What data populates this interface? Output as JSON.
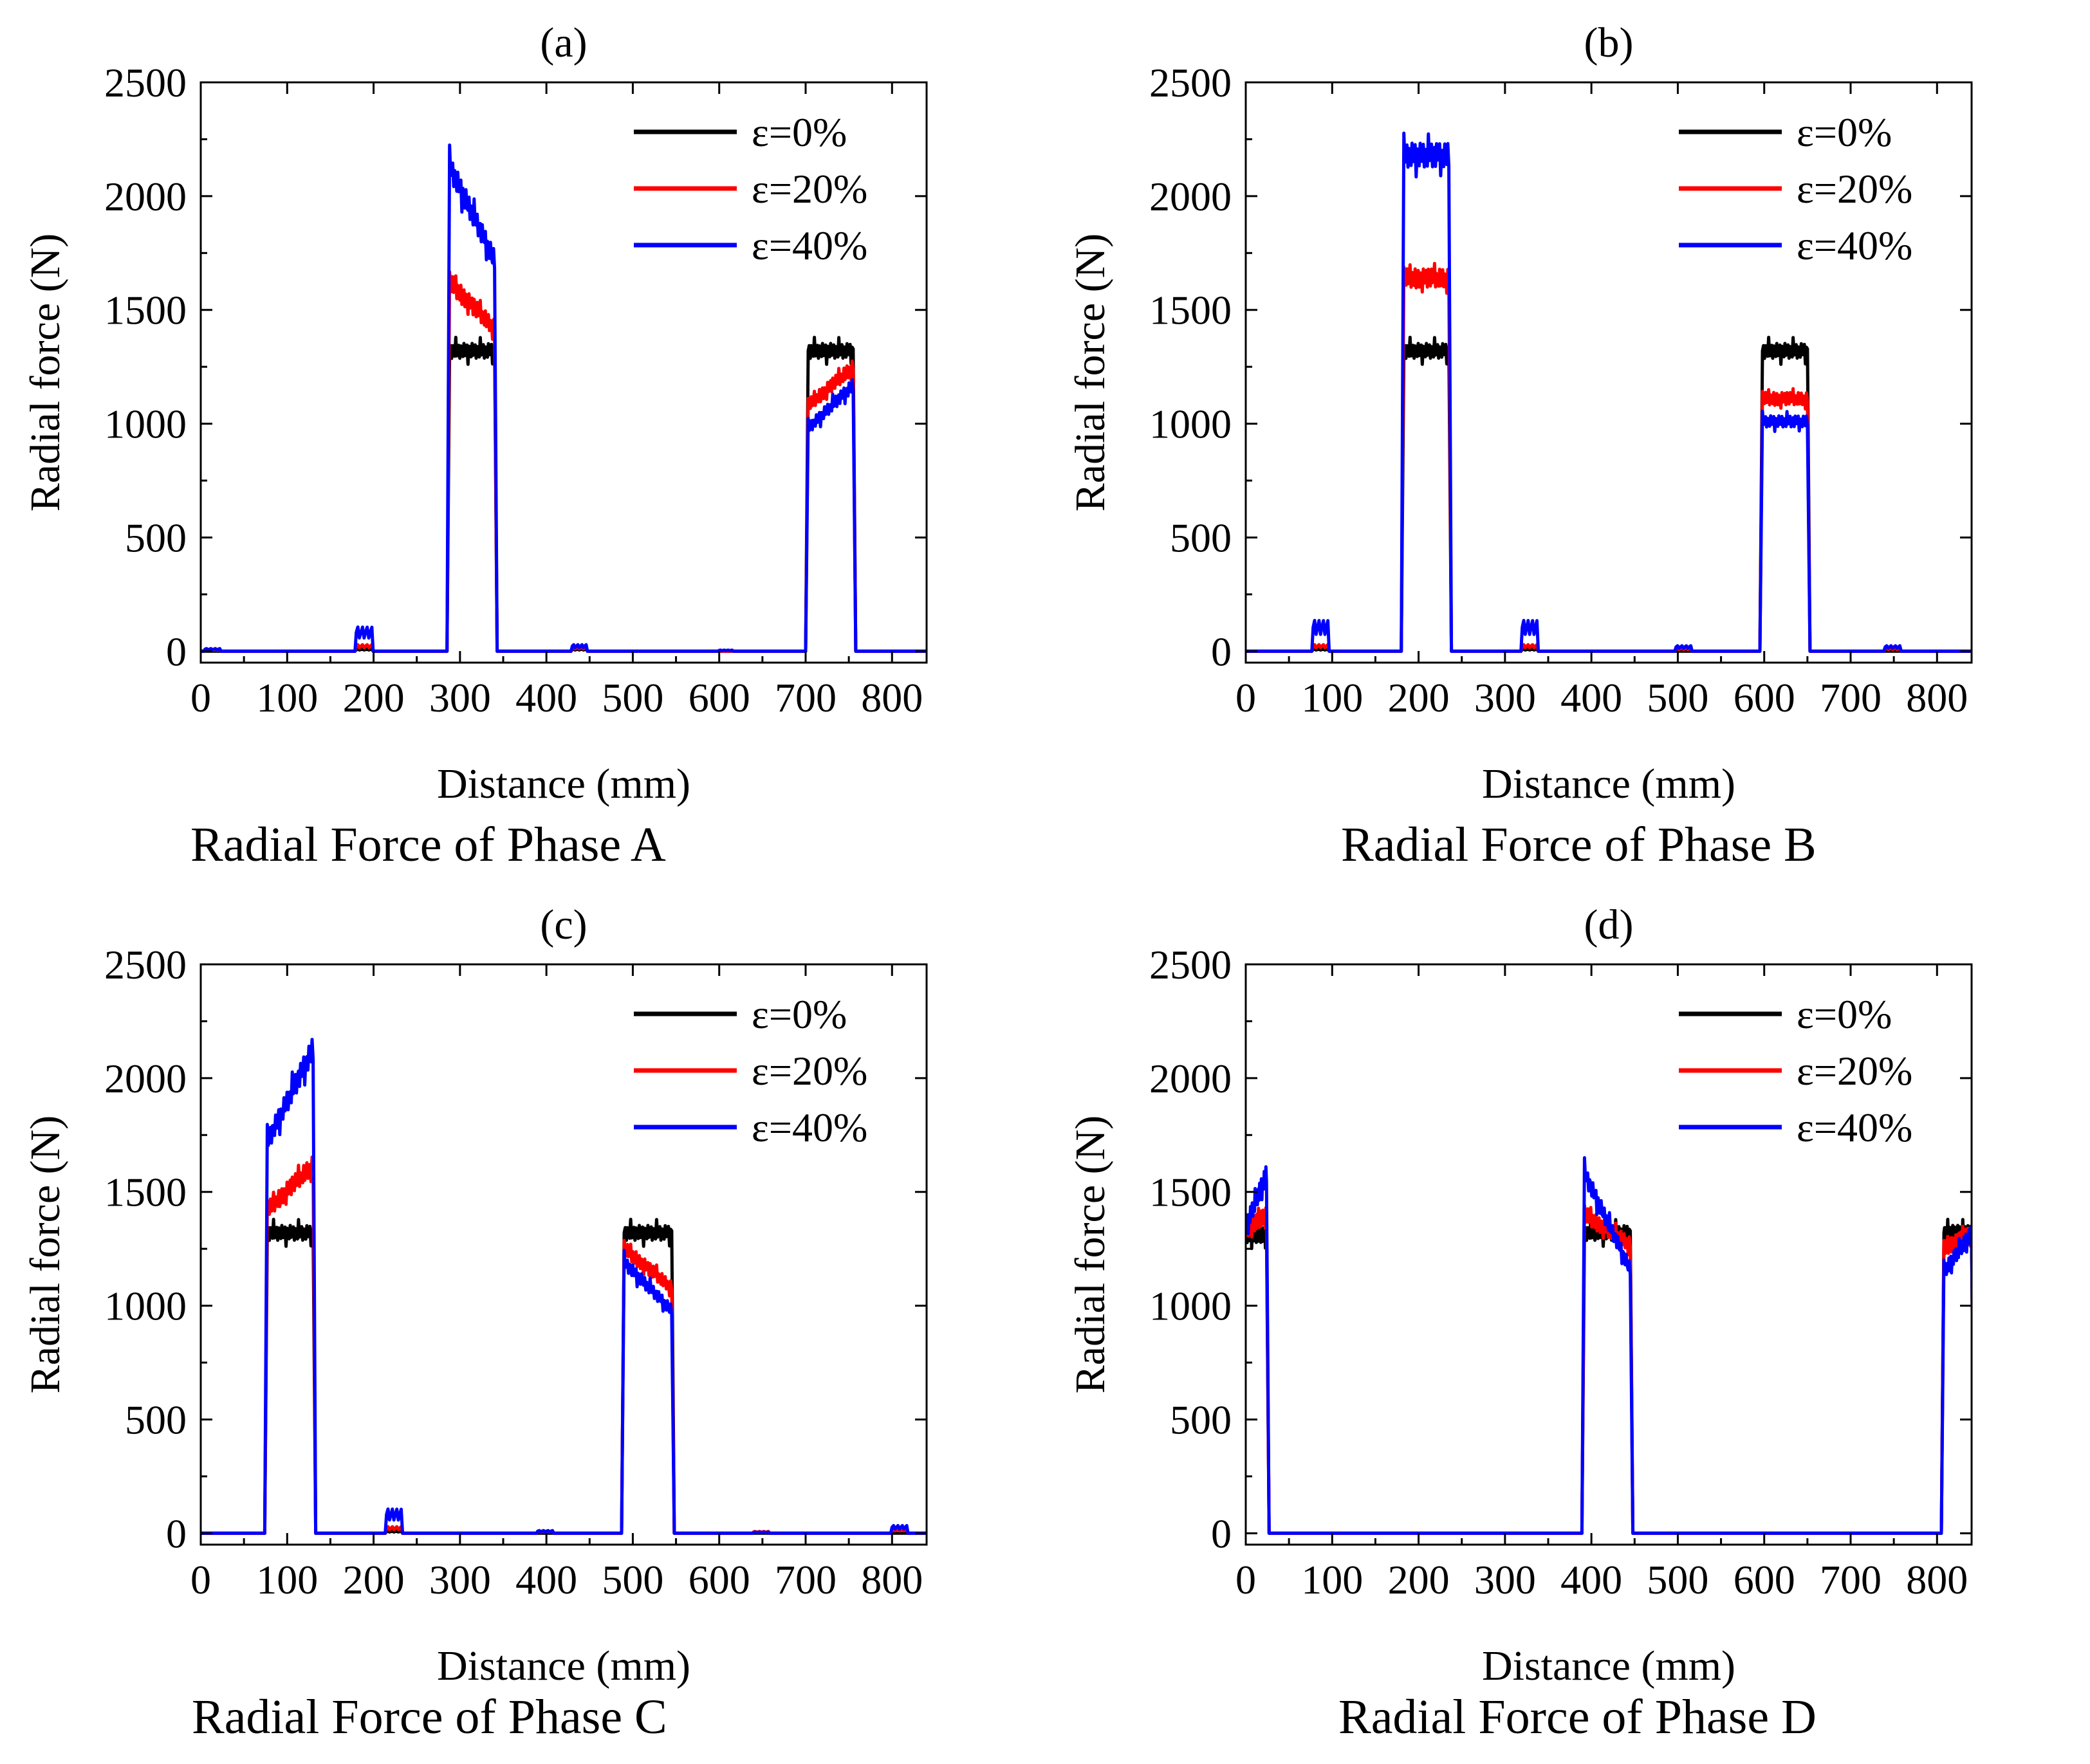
{
  "series_styles": [
    {
      "name": "ε=0%",
      "color": "#000000"
    },
    {
      "name": "ε=20%",
      "color": "#ff0000"
    },
    {
      "name": "ε=40%",
      "color": "#0000ff"
    }
  ],
  "chart_data": [
    {
      "type": "line",
      "label": "(a)",
      "caption": "Radial Force of Phase A",
      "xlabel": "Distance (mm)",
      "ylabel": "Radial force (N)",
      "xlim": [
        0,
        840
      ],
      "ylim": [
        -50,
        2500
      ],
      "xticks": [
        0,
        100,
        200,
        300,
        400,
        500,
        600,
        700,
        800
      ],
      "yticks": [
        0,
        500,
        1000,
        1500,
        2000,
        2500
      ],
      "legend_position": "top-right",
      "series": [
        {
          "name": "ε=0%",
          "color": "#000000",
          "pulses": [
            {
              "x0": 288,
              "x1": 340,
              "start": 1320,
              "end": 1320
            },
            {
              "x0": 703,
              "x1": 755,
              "start": 1320,
              "end": 1320
            }
          ],
          "small": [
            {
              "x0": 180,
              "x1": 198,
              "h": 10
            },
            {
              "x0": 430,
              "x1": 446,
              "h": 10
            }
          ]
        },
        {
          "name": "ε=20%",
          "color": "#ff0000",
          "pulses": [
            {
              "x0": 288,
              "x1": 340,
              "start": 1620,
              "end": 1420
            },
            {
              "x0": 703,
              "x1": 755,
              "start": 1080,
              "end": 1250
            }
          ],
          "small": [
            {
              "x0": 5,
              "x1": 22,
              "h": 8
            },
            {
              "x0": 180,
              "x1": 198,
              "h": 30
            },
            {
              "x0": 430,
              "x1": 446,
              "h": 20
            }
          ]
        },
        {
          "name": "ε=40%",
          "color": "#0000ff",
          "pulses": [
            {
              "x0": 288,
              "x1": 340,
              "start": 2130,
              "end": 1720
            },
            {
              "x0": 703,
              "x1": 755,
              "start": 980,
              "end": 1170
            }
          ],
          "small": [
            {
              "x0": 5,
              "x1": 22,
              "h": 12
            },
            {
              "x0": 180,
              "x1": 198,
              "h": 110
            },
            {
              "x0": 430,
              "x1": 446,
              "h": 30
            },
            {
              "x0": 600,
              "x1": 615,
              "h": 5
            }
          ]
        }
      ]
    },
    {
      "type": "line",
      "label": "(b)",
      "caption": "Radial Force of Phase B",
      "xlabel": "Distance (mm)",
      "ylabel": "Radial force (N)",
      "xlim": [
        0,
        840
      ],
      "ylim": [
        -50,
        2500
      ],
      "xticks": [
        0,
        100,
        200,
        300,
        400,
        500,
        600,
        700,
        800
      ],
      "yticks": [
        0,
        500,
        1000,
        1500,
        2000,
        2500
      ],
      "legend_position": "top-right",
      "series": [
        {
          "name": "ε=0%",
          "color": "#000000",
          "pulses": [
            {
              "x0": 183,
              "x1": 235,
              "start": 1320,
              "end": 1320
            },
            {
              "x0": 598,
              "x1": 650,
              "start": 1320,
              "end": 1320
            }
          ],
          "small": [
            {
              "x0": 78,
              "x1": 95,
              "h": 10
            },
            {
              "x0": 320,
              "x1": 337,
              "h": 10
            }
          ]
        },
        {
          "name": "ε=20%",
          "color": "#ff0000",
          "pulses": [
            {
              "x0": 183,
              "x1": 235,
              "start": 1640,
              "end": 1640
            },
            {
              "x0": 598,
              "x1": 650,
              "start": 1110,
              "end": 1110
            }
          ],
          "small": [
            {
              "x0": 78,
              "x1": 95,
              "h": 30
            },
            {
              "x0": 320,
              "x1": 337,
              "h": 30
            },
            {
              "x0": 498,
              "x1": 515,
              "h": 15
            },
            {
              "x0": 740,
              "x1": 757,
              "h": 15
            }
          ]
        },
        {
          "name": "ε=40%",
          "color": "#0000ff",
          "pulses": [
            {
              "x0": 183,
              "x1": 235,
              "start": 2180,
              "end": 2180
            },
            {
              "x0": 598,
              "x1": 650,
              "start": 1010,
              "end": 1010
            }
          ],
          "small": [
            {
              "x0": 78,
              "x1": 95,
              "h": 140
            },
            {
              "x0": 320,
              "x1": 337,
              "h": 140
            },
            {
              "x0": 498,
              "x1": 515,
              "h": 25
            },
            {
              "x0": 740,
              "x1": 757,
              "h": 25
            }
          ]
        }
      ]
    },
    {
      "type": "line",
      "label": "(c)",
      "caption": "Radial Force of Phase C",
      "xlabel": "Distance (mm)",
      "ylabel": "Radial force (N)",
      "xlim": [
        0,
        840
      ],
      "ylim": [
        -50,
        2500
      ],
      "xticks": [
        0,
        100,
        200,
        300,
        400,
        500,
        600,
        700,
        800
      ],
      "yticks": [
        0,
        500,
        1000,
        1500,
        2000,
        2500
      ],
      "legend_position": "top-right",
      "series": [
        {
          "name": "ε=0%",
          "color": "#000000",
          "pulses": [
            {
              "x0": 77,
              "x1": 130,
              "start": 1320,
              "end": 1320
            },
            {
              "x0": 490,
              "x1": 545,
              "start": 1320,
              "end": 1320
            }
          ],
          "small": [
            {
              "x0": 215,
              "x1": 232,
              "h": 10
            }
          ]
        },
        {
          "name": "ε=20%",
          "color": "#ff0000",
          "pulses": [
            {
              "x0": 77,
              "x1": 130,
              "start": 1420,
              "end": 1620
            },
            {
              "x0": 490,
              "x1": 545,
              "start": 1250,
              "end": 1080
            }
          ],
          "small": [
            {
              "x0": 215,
              "x1": 232,
              "h": 30
            },
            {
              "x0": 390,
              "x1": 407,
              "h": 10
            },
            {
              "x0": 640,
              "x1": 657,
              "h": 8
            },
            {
              "x0": 800,
              "x1": 817,
              "h": 20
            }
          ]
        },
        {
          "name": "ε=40%",
          "color": "#0000ff",
          "pulses": [
            {
              "x0": 77,
              "x1": 130,
              "start": 1720,
              "end": 2130
            },
            {
              "x0": 490,
              "x1": 545,
              "start": 1190,
              "end": 980
            }
          ],
          "small": [
            {
              "x0": 215,
              "x1": 232,
              "h": 110
            },
            {
              "x0": 390,
              "x1": 407,
              "h": 12
            },
            {
              "x0": 640,
              "x1": 657,
              "h": 5
            },
            {
              "x0": 800,
              "x1": 817,
              "h": 35
            }
          ]
        }
      ]
    },
    {
      "type": "line",
      "label": "(d)",
      "caption": "Radial Force of Phase D",
      "xlabel": "Distance (mm)",
      "ylabel": "Radial force (N)",
      "xlim": [
        0,
        840
      ],
      "ylim": [
        -50,
        2500
      ],
      "xticks": [
        0,
        100,
        200,
        300,
        400,
        500,
        600,
        700,
        800
      ],
      "yticks": [
        0,
        500,
        1000,
        1500,
        2000,
        2500
      ],
      "legend_position": "top-right",
      "series": [
        {
          "name": "ε=0%",
          "color": "#000000",
          "pulses": [
            {
              "x0": -5,
              "x1": 24,
              "start": 1310,
              "end": 1310
            },
            {
              "x0": 392,
              "x1": 445,
              "start": 1320,
              "end": 1320
            },
            {
              "x0": 808,
              "x1": 840,
              "start": 1320,
              "end": 1320
            }
          ],
          "small": []
        },
        {
          "name": "ε=20%",
          "color": "#ff0000",
          "pulses": [
            {
              "x0": -5,
              "x1": 24,
              "start": 1320,
              "end": 1400
            },
            {
              "x0": 392,
              "x1": 445,
              "start": 1400,
              "end": 1270
            },
            {
              "x0": 808,
              "x1": 840,
              "start": 1250,
              "end": 1320
            }
          ],
          "small": []
        },
        {
          "name": "ε=40%",
          "color": "#0000ff",
          "pulses": [
            {
              "x0": -5,
              "x1": 24,
              "start": 1300,
              "end": 1580
            },
            {
              "x0": 392,
              "x1": 445,
              "start": 1580,
              "end": 1160
            },
            {
              "x0": 808,
              "x1": 840,
              "start": 1150,
              "end": 1320
            }
          ],
          "small": []
        }
      ]
    }
  ]
}
